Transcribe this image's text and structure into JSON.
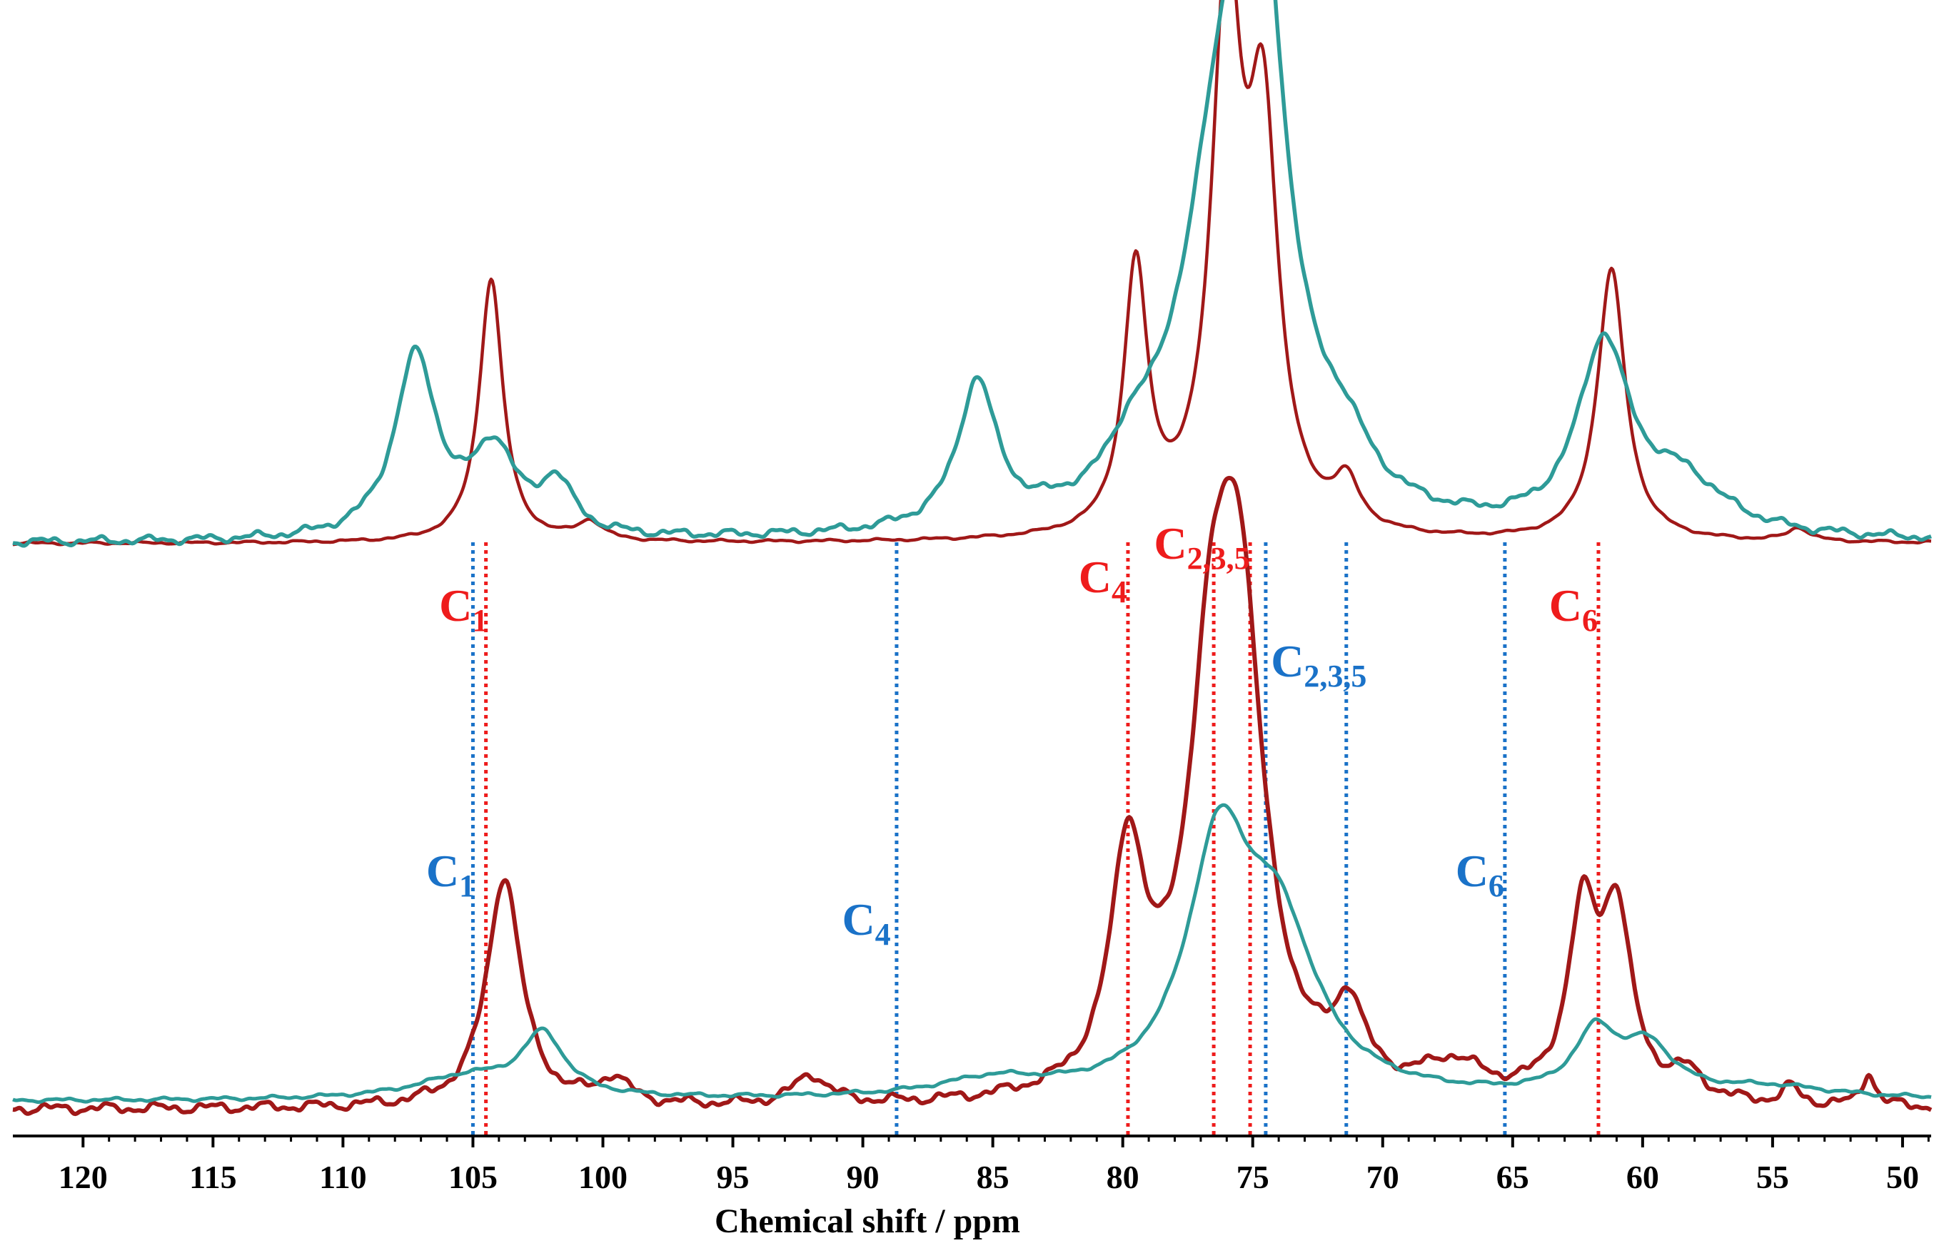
{
  "chart_data": {
    "type": "line",
    "xlabel": "Chemical shift / ppm",
    "x_range": [
      122.7,
      48.9
    ],
    "x_reversed": true,
    "ticks": [
      120,
      115,
      110,
      105,
      100,
      95,
      90,
      85,
      80,
      75,
      70,
      65,
      60,
      55,
      50
    ],
    "colors": {
      "red": "#a01818",
      "teal": "#2e9b98",
      "red_ref": "#ee1c1c",
      "blue_ref": "#1a72c8"
    },
    "series": [
      {
        "name": "top-red",
        "color": "#a01818",
        "baseline": 0.0,
        "noise": 0.006,
        "peaks": [
          [
            104.3,
            1.0,
            0.55
          ],
          [
            79.5,
            1.0,
            0.55
          ],
          [
            76.0,
            2.0,
            0.7
          ],
          [
            74.6,
            1.45,
            0.7
          ],
          [
            71.4,
            0.17,
            0.6
          ],
          [
            61.2,
            1.03,
            0.65
          ],
          [
            100.5,
            0.07,
            0.6
          ],
          [
            54.0,
            0.05,
            0.5
          ]
        ]
      },
      {
        "name": "top-teal",
        "color": "#2e9b98",
        "baseline": 0.0,
        "noise": 0.015,
        "peaks": [
          [
            107.2,
            0.54,
            1.0
          ],
          [
            104.2,
            0.25,
            1.0
          ],
          [
            101.8,
            0.15,
            0.8
          ],
          [
            85.6,
            0.43,
            0.9
          ],
          [
            79.7,
            0.1,
            0.9
          ],
          [
            76.0,
            1.15,
            2.0
          ],
          [
            74.7,
            1.25,
            1.1
          ],
          [
            71.5,
            0.13,
            1.2
          ],
          [
            61.5,
            0.55,
            1.2
          ],
          [
            58.5,
            0.15,
            2.0
          ]
        ]
      },
      {
        "name": "bottom-red",
        "color": "#a01818",
        "baseline": 0.0,
        "noise": 0.015,
        "peaks": [
          [
            103.8,
            0.55,
            0.8
          ],
          [
            79.8,
            0.55,
            0.8
          ],
          [
            76.6,
            0.8,
            1.1
          ],
          [
            75.5,
            1.02,
            1.1
          ],
          [
            71.3,
            0.18,
            0.7
          ],
          [
            62.3,
            0.42,
            0.7
          ],
          [
            61.0,
            0.42,
            0.7
          ],
          [
            67.3,
            0.08,
            1.5
          ],
          [
            92.0,
            0.07,
            0.8
          ],
          [
            99.6,
            0.06,
            0.7
          ],
          [
            58.3,
            0.06,
            0.8
          ],
          [
            51.3,
            0.08,
            0.3
          ],
          [
            54.3,
            0.04,
            0.4
          ]
        ]
      },
      {
        "name": "bottom-teal",
        "color": "#2e9b98",
        "baseline": 0.03,
        "noise": 0.008,
        "peaks": [
          [
            102.3,
            0.22,
            1.0
          ],
          [
            105.2,
            0.08,
            2.5
          ],
          [
            85.0,
            0.06,
            2.5
          ],
          [
            76.3,
            0.85,
            1.5
          ],
          [
            74.0,
            0.55,
            1.8
          ],
          [
            61.8,
            0.22,
            1.0
          ],
          [
            59.8,
            0.17,
            1.2
          ],
          [
            55.0,
            0.04,
            3.0
          ]
        ]
      }
    ]
  },
  "reference_lines": [
    {
      "ppm": 104.5,
      "color": "#ee1c1c",
      "segment": "full"
    },
    {
      "ppm": 79.8,
      "color": "#ee1c1c",
      "segment": "full"
    },
    {
      "ppm": 76.5,
      "color": "#ee1c1c",
      "segment": "full"
    },
    {
      "ppm": 75.1,
      "color": "#ee1c1c",
      "segment": "full"
    },
    {
      "ppm": 61.7,
      "color": "#ee1c1c",
      "segment": "full"
    },
    {
      "ppm": 105.0,
      "color": "#1a72c8",
      "segment": "full"
    },
    {
      "ppm": 88.7,
      "color": "#1a72c8",
      "segment": "full"
    },
    {
      "ppm": 74.5,
      "color": "#1a72c8",
      "segment": "full"
    },
    {
      "ppm": 71.4,
      "color": "#1a72c8",
      "segment": "full"
    },
    {
      "ppm": 65.3,
      "color": "#1a72c8",
      "segment": "full"
    }
  ],
  "labels": [
    {
      "main": "C",
      "sub": "1",
      "color": "#ee1c1c",
      "ppm": 106.3,
      "row": "upper-1"
    },
    {
      "main": "C",
      "sub": "4",
      "color": "#ee1c1c",
      "ppm": 81.7,
      "row": "upper-0"
    },
    {
      "main": "C",
      "sub": "2,3,5",
      "color": "#ee1c1c",
      "ppm": 78.8,
      "row": "upper-top"
    },
    {
      "main": "C",
      "sub": "6",
      "color": "#ee1c1c",
      "ppm": 63.6,
      "row": "upper-1"
    },
    {
      "main": "C",
      "sub": "2,3,5",
      "color": "#1a72c8",
      "ppm": 74.3,
      "row": "upper-2"
    },
    {
      "main": "C",
      "sub": "1",
      "color": "#1a72c8",
      "ppm": 106.8,
      "row": "lower-0"
    },
    {
      "main": "C",
      "sub": "4",
      "color": "#1a72c8",
      "ppm": 90.8,
      "row": "lower-1"
    },
    {
      "main": "C",
      "sub": "6",
      "color": "#1a72c8",
      "ppm": 67.2,
      "row": "lower-0"
    }
  ]
}
